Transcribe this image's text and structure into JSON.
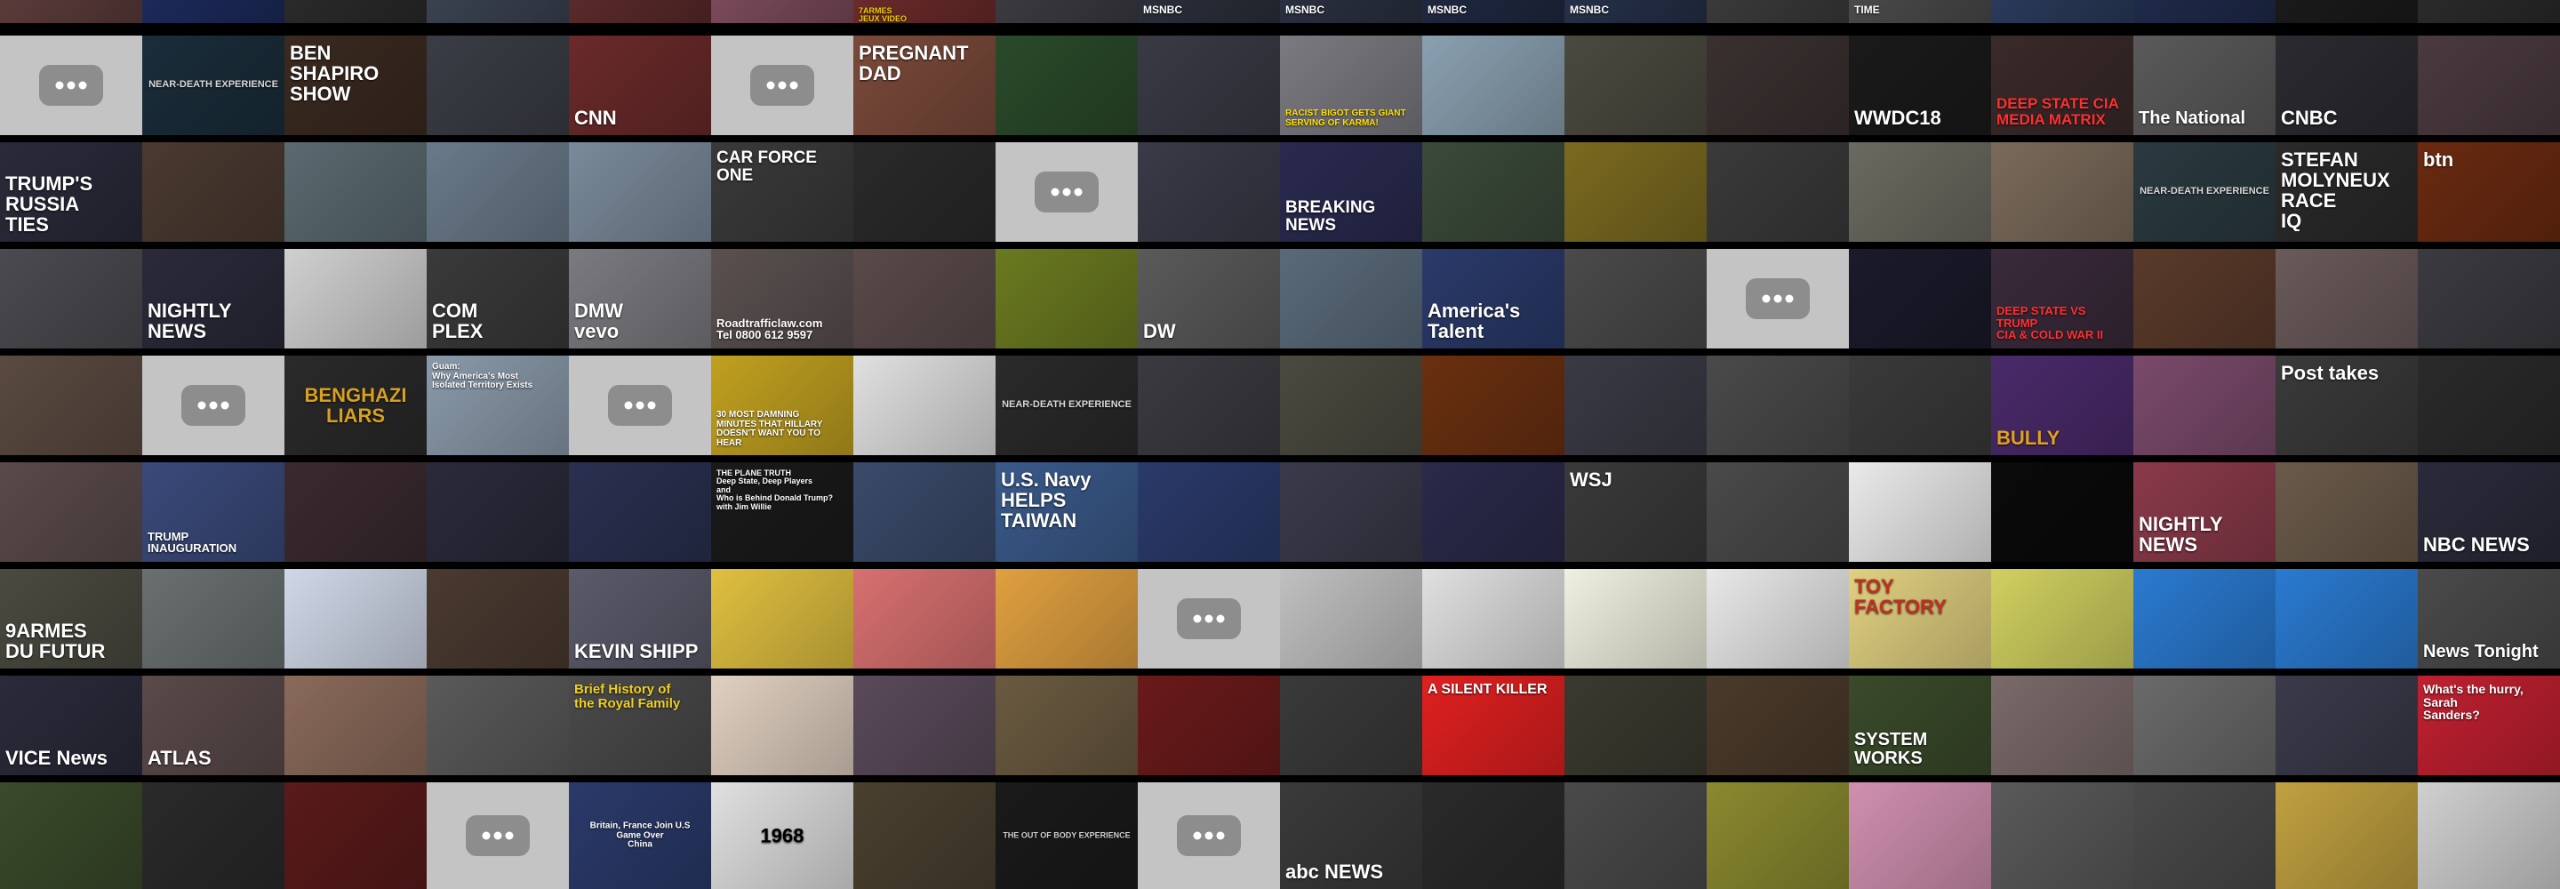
{
  "grid": {
    "placeholder_color": "#c4c4c4",
    "placeholder_button_color": "#8d8d8d",
    "rows": [
      {
        "row": 0,
        "tiles": [
          {
            "bg": "#5a3b3a",
            "text": "",
            "fg": "#ffffff"
          },
          {
            "bg": "#1c2a5a",
            "text": "",
            "fg": "#ffffff"
          },
          {
            "bg": "#2a2a2a",
            "text": "",
            "fg": "#ffffff"
          },
          {
            "bg": "#3a4250",
            "text": "",
            "fg": "#ffffff"
          },
          {
            "bg": "#5a2a2a",
            "text": "",
            "fg": "#ffffff"
          },
          {
            "bg": "#7a4a5a",
            "text": "",
            "fg": "#ffffff"
          },
          {
            "bg": "#6a2a2a",
            "text": "7ARMES\nJEUX VIDEO",
            "fg": "#f0d000",
            "pos": "top"
          },
          {
            "bg": "#3a3a40",
            "text": "",
            "fg": "#ffffff"
          },
          {
            "bg": "#2a2f3a",
            "text": "MSNBC",
            "fg": "#ffffff",
            "pos": "bottom"
          },
          {
            "bg": "#2a3040",
            "text": "MSNBC",
            "fg": "#ffffff",
            "pos": "bottom"
          },
          {
            "bg": "#1f2840",
            "text": "MSNBC",
            "fg": "#ffffff",
            "pos": "bottom"
          },
          {
            "bg": "#253048",
            "text": "MSNBC",
            "fg": "#ffffff",
            "pos": "bottom"
          },
          {
            "bg": "#3a3a3a",
            "text": "",
            "fg": "#ffffff"
          },
          {
            "bg": "#4a4a4a",
            "text": "TIME",
            "fg": "#ffffff",
            "pos": "bottom"
          },
          {
            "bg": "#2a3a5a",
            "text": "",
            "fg": "#ffffff"
          },
          {
            "bg": "#1f2a4a",
            "text": "",
            "fg": "#ffffff"
          },
          {
            "bg": "#1a1a1a",
            "text": "",
            "fg": "#ffffff"
          },
          {
            "bg": "#2a2a2a",
            "text": "",
            "fg": "#ffffff"
          }
        ]
      },
      {
        "row": 1,
        "tiles": [
          {
            "placeholder": true
          },
          {
            "bg": "#1a2d3a",
            "text": "NEAR-DEATH EXPERIENCE",
            "fg": "#d8d8d8",
            "pos": "mid"
          },
          {
            "bg": "#3a2a20",
            "text": "BEN SHAPIRO\nSHOW",
            "fg": "#ffffff",
            "pos": "top"
          },
          {
            "bg": "#3a3d45",
            "text": "",
            "fg": "#ffffff"
          },
          {
            "bg": "#6a2a2a",
            "text": "CNN",
            "fg": "#ffffff",
            "pos": "bottom"
          },
          {
            "placeholder": true
          },
          {
            "bg": "#7a4a3a",
            "text": "PREGNANT\nDAD",
            "fg": "#ffffff",
            "pos": "top"
          },
          {
            "bg": "#2a4a2a",
            "text": "",
            "fg": "#ffffff"
          },
          {
            "bg": "#3a3a45",
            "text": "",
            "fg": "#ffffff"
          },
          {
            "bg": "#7a7a80",
            "text": "RACIST BIGOT GETS GIANT\nSERVING OF KARMA!",
            "fg": "#ffe000",
            "pos": "bottom"
          },
          {
            "bg": "#8aa0b0",
            "text": "",
            "fg": "#ffffff"
          },
          {
            "bg": "#4a4a40",
            "text": "",
            "fg": "#ffffff"
          },
          {
            "bg": "#3a3030",
            "text": "",
            "fg": "#ffffff"
          },
          {
            "bg": "#1a1a1a",
            "text": "WWDC18",
            "fg": "#ffffff",
            "pos": "bottom"
          },
          {
            "bg": "#3a2a2a",
            "text": "DEEP STATE CIA\nMEDIA MATRIX",
            "fg": "#ff3030",
            "pos": "bottom"
          },
          {
            "bg": "#5a5a5a",
            "text": "The National",
            "fg": "#ffffff",
            "pos": "bottom"
          },
          {
            "bg": "#2a2a30",
            "text": "CNBC",
            "fg": "#ffffff",
            "pos": "bottom"
          },
          {
            "bg": "#4a3a40",
            "text": "",
            "fg": "#ffffff"
          }
        ]
      },
      {
        "row": 2,
        "tiles": [
          {
            "bg": "#2a2a3a",
            "text": "TRUMP'S\nRUSSIA\nTIES",
            "fg": "#ffffff",
            "pos": "bottom"
          },
          {
            "bg": "#4a3a30",
            "text": "",
            "fg": "#ffffff"
          },
          {
            "bg": "#5a6a70",
            "text": "",
            "fg": "#ffffff"
          },
          {
            "bg": "#6a7a8a",
            "text": "",
            "fg": "#ffffff"
          },
          {
            "bg": "#7a8a9a",
            "text": "",
            "fg": "#ffffff"
          },
          {
            "bg": "#3a3a3a",
            "text": "CAR FORCE ONE",
            "fg": "#ffffff",
            "pos": "top"
          },
          {
            "bg": "#2a2a2a",
            "text": "",
            "fg": "#ffffff"
          },
          {
            "placeholder": true
          },
          {
            "bg": "#3a3a48",
            "text": "",
            "fg": "#ffffff"
          },
          {
            "bg": "#2a2a50",
            "text": "BREAKING NEWS",
            "fg": "#ffffff",
            "pos": "bottom"
          },
          {
            "bg": "#3a4a3a",
            "text": "",
            "fg": "#ffffff"
          },
          {
            "bg": "#7a6a20",
            "text": "",
            "fg": "#ffffff"
          },
          {
            "bg": "#3a3a3a",
            "text": "",
            "fg": "#ffffff"
          },
          {
            "bg": "#6a6a60",
            "text": "",
            "fg": "#ffffff"
          },
          {
            "bg": "#7a6a5a",
            "text": "",
            "fg": "#ffffff"
          },
          {
            "bg": "#2a3a40",
            "text": "NEAR-DEATH EXPERIENCE",
            "fg": "#d8d8d8",
            "pos": "mid"
          },
          {
            "bg": "#2a2a2a",
            "text": "STEFAN\nMOLYNEUX\nRACE\nIQ",
            "fg": "#ffffff",
            "pos": "top"
          },
          {
            "bg": "#6a2a10",
            "text": "btn",
            "fg": "#ffffff",
            "pos": "top"
          }
        ]
      },
      {
        "row": 3,
        "tiles": [
          {
            "bg": "#4a4a50",
            "text": "",
            "fg": "#ffffff"
          },
          {
            "bg": "#2a2a3a",
            "text": "NIGHTLY\nNEWS",
            "fg": "#ffffff",
            "pos": "bottom"
          },
          {
            "bg": "#d0d0d0",
            "text": "",
            "fg": "#000000"
          },
          {
            "bg": "#3a3a3a",
            "text": "COM\nPLEX",
            "fg": "#ffffff",
            "pos": "bottom"
          },
          {
            "bg": "#7a7a80",
            "text": "DMW\nvevo",
            "fg": "#ffffff",
            "pos": "bottom"
          },
          {
            "bg": "#5a5050",
            "text": "Roadtrafficlaw.com\nTel 0800 612 9597",
            "fg": "#ffffff",
            "pos": "bottom"
          },
          {
            "bg": "#5a4a4a",
            "text": "",
            "fg": "#ffffff"
          },
          {
            "bg": "#6a7a20",
            "text": "",
            "fg": "#ffffff"
          },
          {
            "bg": "#5a5a5a",
            "text": "DW",
            "fg": "#ffffff",
            "pos": "bottom"
          },
          {
            "bg": "#5a6a7a",
            "text": "",
            "fg": "#ffffff"
          },
          {
            "bg": "#2a3a6a",
            "text": "America's\nTalent",
            "fg": "#ffffff",
            "pos": "bottom"
          },
          {
            "bg": "#4a4a4a",
            "text": "",
            "fg": "#ffffff"
          },
          {
            "placeholder": true
          },
          {
            "bg": "#1a1a2a",
            "text": "",
            "fg": "#ffffff"
          },
          {
            "bg": "#3a2a3a",
            "text": "DEEP STATE VS TRUMP\nCIA & COLD WAR II",
            "fg": "#ff3030",
            "pos": "bottom"
          },
          {
            "bg": "#5a3a2a",
            "text": "",
            "fg": "#ffffff"
          },
          {
            "bg": "#6a5a5a",
            "text": "",
            "fg": "#ffffff"
          },
          {
            "bg": "#3a3a40",
            "text": "",
            "fg": "#ffffff"
          }
        ]
      },
      {
        "row": 4,
        "tiles": [
          {
            "bg": "#5a4a40",
            "text": "",
            "fg": "#ffffff"
          },
          {
            "placeholder": true
          },
          {
            "bg": "#2a2a2a",
            "text": "BENGHAZI\nLIARS",
            "fg": "#d8a020",
            "pos": "mid"
          },
          {
            "bg": "#8a9aaa",
            "text": "Guam:\nWhy America's Most\nIsolated Territory Exists",
            "fg": "#ffffff",
            "pos": "top"
          },
          {
            "placeholder": true
          },
          {
            "bg": "#c0a020",
            "text": "30 MOST DAMNING\nMINUTES THAT HILLARY\nDOESN'T WANT YOU TO HEAR",
            "fg": "#ffffff",
            "pos": "bottom"
          },
          {
            "bg": "#e0e0e0",
            "text": "",
            "fg": "#000000"
          },
          {
            "bg": "#2a2a2a",
            "text": "NEAR-DEATH EXPERIENCE",
            "fg": "#d8d8d8",
            "pos": "mid"
          },
          {
            "bg": "#3a3a40",
            "text": "",
            "fg": "#ffffff"
          },
          {
            "bg": "#4a4a40",
            "text": "",
            "fg": "#ffffff"
          },
          {
            "bg": "#6a3010",
            "text": "",
            "fg": "#ffffff"
          },
          {
            "bg": "#3a3a45",
            "text": "",
            "fg": "#ffffff"
          },
          {
            "bg": "#4a4a4a",
            "text": "",
            "fg": "#ffffff"
          },
          {
            "bg": "#3a3a3a",
            "text": "",
            "fg": "#ffffff"
          },
          {
            "bg": "#4a2a6a",
            "text": "BULLY",
            "fg": "#e0a020",
            "pos": "bottom"
          },
          {
            "bg": "#7a4a6a",
            "text": "",
            "fg": "#ffffff"
          },
          {
            "bg": "#3a3a3a",
            "text": "Post takes",
            "fg": "#ffffff",
            "pos": "top"
          },
          {
            "bg": "#2a2a2a",
            "text": "",
            "fg": "#ffffff"
          }
        ]
      },
      {
        "row": 5,
        "tiles": [
          {
            "bg": "#5a4a4a",
            "text": "",
            "fg": "#ffffff"
          },
          {
            "bg": "#3a4a7a",
            "text": "TRUMP INAUGURATION",
            "fg": "#ffffff",
            "pos": "bottom"
          },
          {
            "bg": "#3a2a30",
            "text": "",
            "fg": "#ffffff"
          },
          {
            "bg": "#2a2a3a",
            "text": "",
            "fg": "#ffffff"
          },
          {
            "bg": "#2a3050",
            "text": "",
            "fg": "#ffffff"
          },
          {
            "bg": "#1a1a1a",
            "text": "THE PLANE TRUTH\nDeep State, Deep Players\nand\nWho is Behind Donald Trump?\nwith Jim Willie",
            "fg": "#ffffff",
            "pos": "top"
          },
          {
            "bg": "#3a4a6a",
            "text": "",
            "fg": "#ffffff"
          },
          {
            "bg": "#3a5a8a",
            "text": "U.S. Navy\nHELPS\nTAIWAN",
            "fg": "#ffffff",
            "pos": "top"
          },
          {
            "bg": "#2a3a6a",
            "text": "",
            "fg": "#ffffff"
          },
          {
            "bg": "#3a3a4a",
            "text": "",
            "fg": "#ffffff"
          },
          {
            "bg": "#2a2a4a",
            "text": "",
            "fg": "#ffffff"
          },
          {
            "bg": "#3a3a3a",
            "text": "WSJ",
            "fg": "#ffffff",
            "pos": "top"
          },
          {
            "bg": "#4a4a4a",
            "text": "",
            "fg": "#ffffff"
          },
          {
            "bg": "#eaeaea",
            "text": "",
            "fg": "#000000"
          },
          {
            "bg": "#0a0a0a",
            "text": "",
            "fg": "#ffffff"
          },
          {
            "bg": "#8a3a4a",
            "text": "NIGHTLY\nNEWS",
            "fg": "#ffffff",
            "pos": "bottom"
          },
          {
            "bg": "#6a5a4a",
            "text": "",
            "fg": "#ffffff"
          },
          {
            "bg": "#2a2a3a",
            "text": "NBC NEWS",
            "fg": "#ffffff",
            "pos": "bottom"
          }
        ]
      },
      {
        "row": 6,
        "tiles": [
          {
            "bg": "#4a4a40",
            "text": "9ARMES\nDU FUTUR",
            "fg": "#ffffff",
            "pos": "bottom"
          },
          {
            "bg": "#6a7070",
            "text": "",
            "fg": "#ffffff"
          },
          {
            "bg": "#d0d8e8",
            "text": "",
            "fg": "#000000"
          },
          {
            "bg": "#4a3a30",
            "text": "",
            "fg": "#ffffff"
          },
          {
            "bg": "#5a5a6a",
            "text": "KEVIN SHIPP",
            "fg": "#ffffff",
            "pos": "bottom"
          },
          {
            "bg": "#e0c040",
            "text": "",
            "fg": "#ffffff"
          },
          {
            "bg": "#d87070",
            "text": "",
            "fg": "#ffffff"
          },
          {
            "bg": "#e0a040",
            "text": "",
            "fg": "#ffffff"
          },
          {
            "placeholder": true
          },
          {
            "bg": "#c0c0c0",
            "text": "",
            "fg": "#ffffff"
          },
          {
            "bg": "#e0e0e0",
            "text": "",
            "fg": "#ffffff"
          },
          {
            "bg": "#f0f0e0",
            "text": "",
            "fg": "#ffffff"
          },
          {
            "bg": "#e8e8e8",
            "text": "",
            "fg": "#ffffff"
          },
          {
            "bg": "#e0d080",
            "text": "TOY FACTORY",
            "fg": "#c03020",
            "pos": "top"
          },
          {
            "bg": "#d0d060",
            "text": "",
            "fg": "#ffffff"
          },
          {
            "bg": "#2a7ad0",
            "text": "",
            "fg": "#ffffff"
          },
          {
            "bg": "#2a7ad0",
            "text": "",
            "fg": "#ffffff"
          },
          {
            "bg": "#4a4a4a",
            "text": "News Tonight",
            "fg": "#ffffff",
            "pos": "bottom"
          }
        ]
      },
      {
        "row": 7,
        "tiles": [
          {
            "bg": "#2a2a3a",
            "text": "VICE News",
            "fg": "#ffffff",
            "pos": "bottom"
          },
          {
            "bg": "#5a4a4a",
            "text": "ATLAS",
            "fg": "#ffffff",
            "pos": "bottom"
          },
          {
            "bg": "#8a6a5a",
            "text": "",
            "fg": "#ffffff"
          },
          {
            "bg": "#5a5a5a",
            "text": "",
            "fg": "#ffffff"
          },
          {
            "bg": "#4a4a4a",
            "text": "Brief History of\nthe Royal Family",
            "fg": "#f0d020",
            "pos": "top"
          },
          {
            "bg": "#e0d0c0",
            "text": "",
            "fg": "#000000"
          },
          {
            "bg": "#5a4a5a",
            "text": "",
            "fg": "#ffffff"
          },
          {
            "bg": "#6a5a40",
            "text": "",
            "fg": "#ffffff"
          },
          {
            "bg": "#6a1a1a",
            "text": "",
            "fg": "#ffffff"
          },
          {
            "bg": "#3a3a3a",
            "text": "",
            "fg": "#ffffff"
          },
          {
            "bg": "#e02020",
            "text": "A SILENT KILLER",
            "fg": "#ffffff",
            "pos": "top"
          },
          {
            "bg": "#3a3a30",
            "text": "",
            "fg": "#ffffff"
          },
          {
            "bg": "#4a3a2a",
            "text": "",
            "fg": "#ffffff"
          },
          {
            "bg": "#3a4a2a",
            "text": "SYSTEM WORKS",
            "fg": "#ffffff",
            "pos": "bottom"
          },
          {
            "bg": "#7a6a6a",
            "text": "",
            "fg": "#ffffff"
          },
          {
            "bg": "#6a6a6a",
            "text": "",
            "fg": "#ffffff"
          },
          {
            "bg": "#3a3a4a",
            "text": "",
            "fg": "#ffffff"
          },
          {
            "bg": "#c02030",
            "text": "What's the hurry,\nSarah\nSanders?",
            "fg": "#ffffff",
            "pos": "top"
          }
        ]
      },
      {
        "row": 8,
        "tiles": [
          {
            "bg": "#3a4a2a",
            "text": "",
            "fg": "#ffffff"
          },
          {
            "bg": "#2a2a2a",
            "text": "",
            "fg": "#ffffff"
          },
          {
            "bg": "#5a1a1a",
            "text": "",
            "fg": "#ffffff"
          },
          {
            "placeholder": true
          },
          {
            "bg": "#2a3a6a",
            "text": "Britain, France Join U.S\nGame Over\nChina",
            "fg": "#ffffff",
            "pos": "mid"
          },
          {
            "bg": "#e0e0e0",
            "text": "1968",
            "fg": "#000000",
            "pos": "mid"
          },
          {
            "bg": "#4a4030",
            "text": "",
            "fg": "#ffffff"
          },
          {
            "bg": "#1a1a1a",
            "text": "THE OUT OF BODY EXPERIENCE",
            "fg": "#d0d0d0",
            "pos": "mid"
          },
          {
            "placeholder": true
          },
          {
            "bg": "#3a3a3a",
            "text": "abc NEWS",
            "fg": "#ffffff",
            "pos": "bottom"
          },
          {
            "bg": "#2a2a2a",
            "text": "",
            "fg": "#ffffff"
          },
          {
            "bg": "#4a4a4a",
            "text": "",
            "fg": "#ffffff"
          },
          {
            "bg": "#8a8a30",
            "text": "",
            "fg": "#ffffff"
          },
          {
            "bg": "#d090b0",
            "text": "",
            "fg": "#ffffff"
          },
          {
            "bg": "#5a5a5a",
            "text": "",
            "fg": "#ffffff"
          },
          {
            "bg": "#4a4a4a",
            "text": "",
            "fg": "#ffffff"
          },
          {
            "bg": "#c0a040",
            "text": "",
            "fg": "#ffffff"
          },
          {
            "bg": "#d0d0d0",
            "text": "",
            "fg": "#000000"
          }
        ]
      }
    ]
  }
}
